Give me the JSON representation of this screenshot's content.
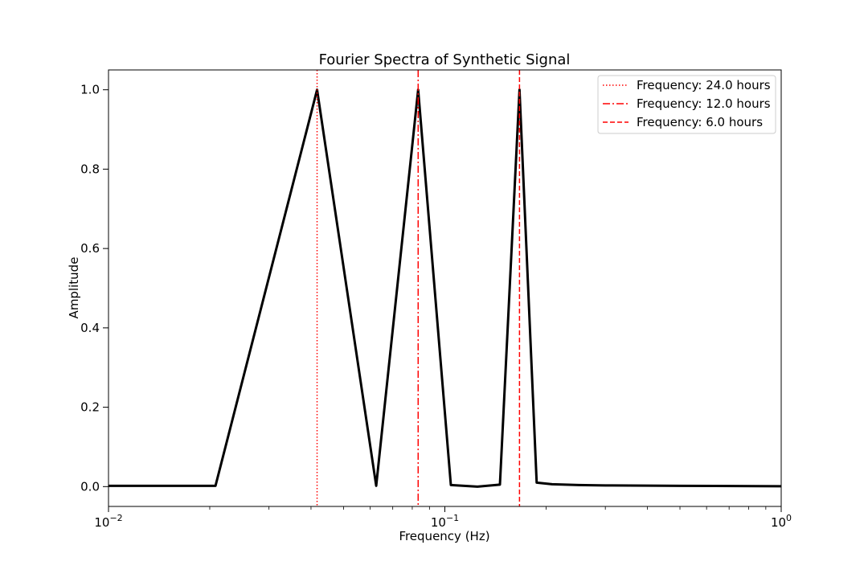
{
  "chart_data": {
    "type": "line",
    "title": "Fourier Spectra of Synthetic Signal",
    "xlabel": "Frequency (Hz)",
    "ylabel": "Amplitude",
    "xscale": "log",
    "xlim": [
      0.01,
      1
    ],
    "ylim": [
      -0.05,
      1.05
    ],
    "xticks": [
      {
        "value": 0.01,
        "base": "10",
        "exp": "−2"
      },
      {
        "value": 0.1,
        "base": "10",
        "exp": "−1"
      },
      {
        "value": 1,
        "base": "10",
        "exp": "0"
      }
    ],
    "yticks": [
      {
        "value": 0.0,
        "label": "0.0"
      },
      {
        "value": 0.2,
        "label": "0.2"
      },
      {
        "value": 0.4,
        "label": "0.4"
      },
      {
        "value": 0.6,
        "label": "0.6"
      },
      {
        "value": 0.8,
        "label": "0.8"
      },
      {
        "value": 1.0,
        "label": "1.0"
      }
    ],
    "grid": false,
    "legend_position": "top-right",
    "series": [
      {
        "color": "#000000",
        "x": [
          0.001,
          0.0208,
          0.0417,
          0.0625,
          0.0833,
          0.1042,
          0.125,
          0.1458,
          0.1667,
          0.1875,
          0.2083,
          0.25,
          0.3,
          0.5,
          1.0
        ],
        "y": [
          0.002,
          0.002,
          1.0,
          0.002,
          1.0,
          0.004,
          0.0,
          0.005,
          1.0,
          0.01,
          0.006,
          0.004,
          0.003,
          0.002,
          0.001
        ]
      }
    ],
    "reference_lines": [
      {
        "label": "Frequency: 24.0 hours",
        "x": 0.0417,
        "style": "dotted",
        "color": "#ff0000"
      },
      {
        "label": "Frequency: 12.0 hours",
        "x": 0.0833,
        "style": "dashdot",
        "color": "#ff0000"
      },
      {
        "label": "Frequency: 6.0 hours",
        "x": 0.1667,
        "style": "dashed",
        "color": "#ff0000"
      }
    ]
  }
}
